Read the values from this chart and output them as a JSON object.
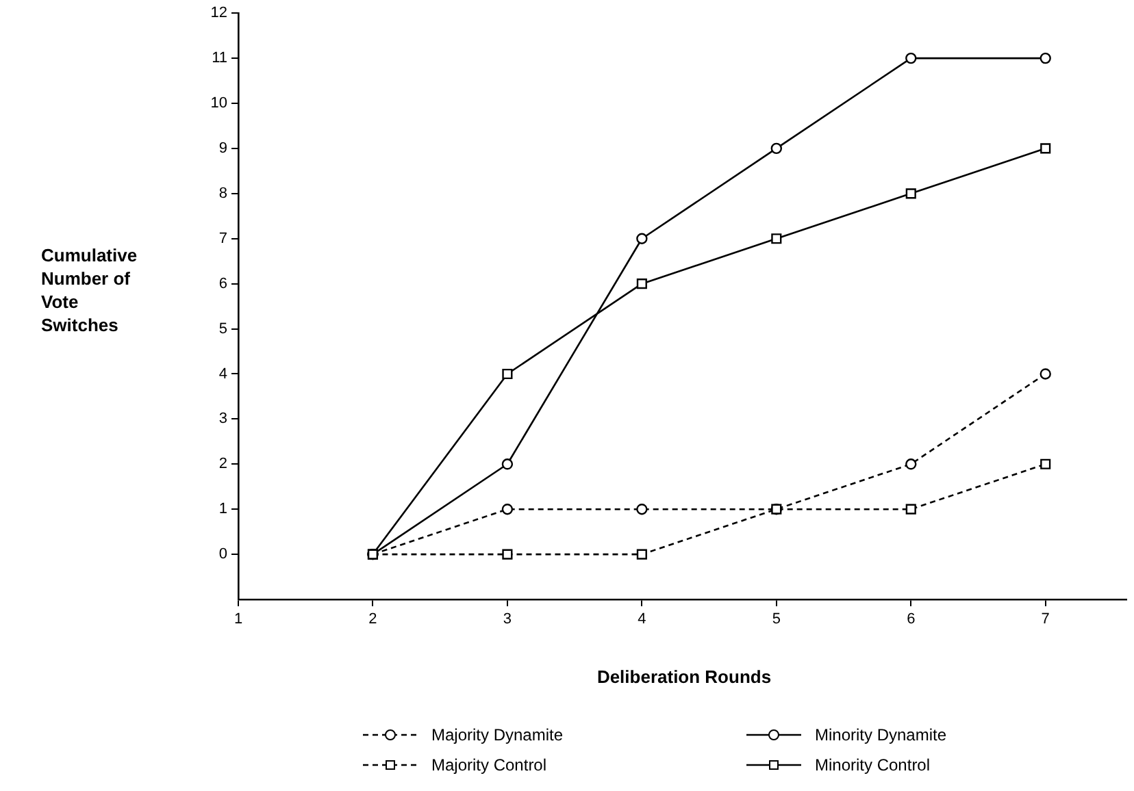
{
  "chart_data": {
    "type": "line",
    "xlabel": "Deliberation Rounds",
    "ylabel": "Cumulative Number of Vote Switches",
    "xlim": [
      1,
      7.6
    ],
    "xticks": [
      1,
      2,
      3,
      4,
      5,
      6,
      7
    ],
    "ylim": [
      -1,
      12
    ],
    "yticks": [
      0,
      1,
      2,
      3,
      4,
      5,
      6,
      7,
      8,
      9,
      10,
      11,
      12
    ],
    "grid": false,
    "legend": "bottom",
    "series": [
      {
        "name": "Majority Dynamite",
        "color": "#000000",
        "x": [
          2,
          3,
          4,
          5,
          6,
          7
        ],
        "values": [
          0,
          1,
          1,
          1,
          2,
          4
        ],
        "marker": "circle",
        "line_style": "dashed"
      },
      {
        "name": "Minority Dynamite",
        "color": "#000000",
        "x": [
          2,
          3,
          4,
          5,
          6,
          7
        ],
        "values": [
          0,
          2,
          7,
          9,
          11,
          11
        ],
        "marker": "circle",
        "line_style": "solid"
      },
      {
        "name": "Majority Control",
        "color": "#000000",
        "x": [
          2,
          3,
          4,
          5,
          6,
          7
        ],
        "values": [
          0,
          0,
          0,
          1,
          1,
          2
        ],
        "marker": "square",
        "line_style": "dashed"
      },
      {
        "name": "Minority Control",
        "color": "#000000",
        "x": [
          2,
          3,
          4,
          5,
          6,
          7
        ],
        "values": [
          0,
          4,
          6,
          7,
          8,
          9
        ],
        "marker": "square",
        "line_style": "solid"
      }
    ]
  }
}
